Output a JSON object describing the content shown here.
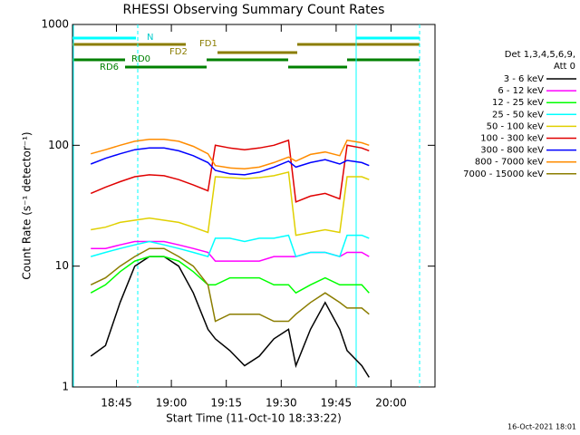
{
  "chart_data": {
    "type": "line",
    "title": "RHESSI Observing Summary Count Rates",
    "x_label": "Start Time (11-Oct-10 18:33:22)",
    "y_label": "Count Rate (s⁻¹ detector⁻¹)",
    "legend_header": [
      "Det 1,3,4,5,6,9,",
      "Att 0"
    ],
    "footer": "16-Oct-2021 18:01",
    "flags": [
      "N",
      "FD1",
      "FD2",
      "RD0",
      "RD6"
    ],
    "log_y": true,
    "xlim": [
      "18:33",
      "20:12"
    ],
    "xticks": [
      "18:45",
      "19:00",
      "19:15",
      "19:30",
      "19:45",
      "20:00"
    ],
    "ylim": [
      1,
      1000
    ],
    "yticks": [
      1,
      10,
      100,
      1000
    ],
    "x": [
      "18:38",
      "18:42",
      "18:46",
      "18:50",
      "18:54",
      "18:58",
      "19:02",
      "19:06",
      "19:10",
      "19:12",
      "19:16",
      "19:20",
      "19:24",
      "19:28",
      "19:32",
      "19:34",
      "19:38",
      "19:42",
      "19:46",
      "19:48",
      "19:52",
      "19:54"
    ],
    "series": [
      {
        "name": "3 - 6 keV",
        "color": "#000000",
        "values": [
          1.8,
          2.2,
          5,
          10,
          12,
          12,
          10,
          6,
          3,
          2.5,
          2,
          1.5,
          1.8,
          2.5,
          3,
          1.5,
          3,
          5,
          3,
          2,
          1.5,
          1.2
        ]
      },
      {
        "name": "6 - 12 keV",
        "color": "#ff00ff",
        "values": [
          14,
          14,
          15,
          16,
          16,
          16,
          15,
          14,
          13,
          11,
          11,
          11,
          11,
          12,
          12,
          12,
          13,
          13,
          12,
          13,
          13,
          12
        ]
      },
      {
        "name": "12 - 25 keV",
        "color": "#00ff00",
        "values": [
          6,
          7,
          9,
          11,
          12,
          12,
          11,
          9,
          7,
          7,
          8,
          8,
          8,
          7,
          7,
          6,
          7,
          8,
          7,
          7,
          7,
          6
        ]
      },
      {
        "name": "25 - 50 keV",
        "color": "#00ffff",
        "values": [
          12,
          13,
          14,
          15,
          16,
          15,
          14,
          13,
          12,
          17,
          17,
          16,
          17,
          17,
          18,
          12,
          13,
          13,
          12,
          18,
          18,
          17
        ]
      },
      {
        "name": "50 - 100 keV",
        "color": "#e0d000",
        "values": [
          20,
          21,
          23,
          24,
          25,
          24,
          23,
          21,
          19,
          55,
          54,
          53,
          54,
          56,
          60,
          18,
          19,
          20,
          19,
          55,
          55,
          52
        ]
      },
      {
        "name": "100 - 300 keV",
        "color": "#e00000",
        "values": [
          40,
          45,
          50,
          55,
          57,
          56,
          52,
          47,
          42,
          100,
          95,
          92,
          95,
          100,
          110,
          34,
          38,
          40,
          36,
          100,
          95,
          90
        ]
      },
      {
        "name": "300 - 800 keV",
        "color": "#0000ff",
        "values": [
          70,
          78,
          85,
          92,
          95,
          95,
          90,
          82,
          72,
          62,
          58,
          57,
          60,
          66,
          74,
          66,
          72,
          76,
          70,
          75,
          72,
          68
        ]
      },
      {
        "name": "800 - 7000 keV",
        "color": "#ff8c00",
        "values": [
          85,
          92,
          100,
          108,
          112,
          112,
          108,
          98,
          85,
          68,
          65,
          64,
          66,
          72,
          80,
          74,
          84,
          88,
          82,
          110,
          105,
          100
        ]
      },
      {
        "name": "7000 - 15000 keV",
        "color": "#8b7d00",
        "values": [
          7,
          8,
          10,
          12,
          14,
          14,
          12,
          10,
          7,
          3.5,
          4,
          4,
          4,
          3.5,
          3.5,
          4,
          5,
          6,
          5,
          4.5,
          4.5,
          4
        ]
      }
    ]
  }
}
